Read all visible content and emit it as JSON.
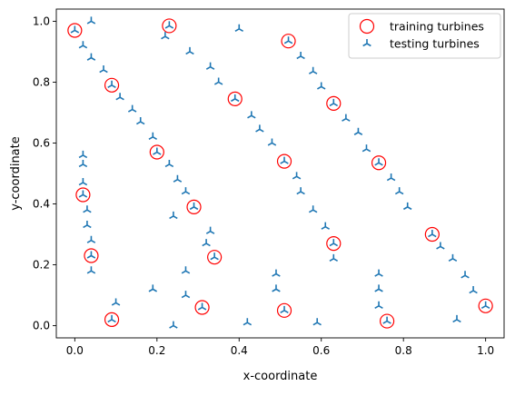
{
  "chart_data": {
    "type": "scatter",
    "title": "",
    "xlabel": "x-coordinate",
    "ylabel": "y-coordinate",
    "xlim": [
      -0.045,
      1.045
    ],
    "ylim": [
      -0.04,
      1.04
    ],
    "xticks": [
      0.0,
      0.2,
      0.4,
      0.6,
      0.8,
      1.0
    ],
    "yticks": [
      0.0,
      0.2,
      0.4,
      0.6,
      0.8,
      1.0
    ],
    "xtick_labels": [
      "0.0",
      "0.2",
      "0.4",
      "0.6",
      "0.8",
      "1.0"
    ],
    "ytick_labels": [
      "0.0",
      "0.2",
      "0.4",
      "0.6",
      "0.8",
      "1.0"
    ],
    "grid": false,
    "legend": {
      "position": "top-right",
      "entries": [
        "training turbines",
        "testing turbines"
      ]
    },
    "series": [
      {
        "name": "training turbines",
        "marker": "open-circle",
        "color": "#ff0000",
        "points": [
          [
            0.0,
            0.97
          ],
          [
            0.23,
            0.985
          ],
          [
            0.52,
            0.935
          ],
          [
            0.09,
            0.79
          ],
          [
            0.39,
            0.745
          ],
          [
            0.63,
            0.73
          ],
          [
            0.2,
            0.57
          ],
          [
            0.51,
            0.54
          ],
          [
            0.74,
            0.535
          ],
          [
            0.02,
            0.43
          ],
          [
            0.29,
            0.39
          ],
          [
            0.04,
            0.23
          ],
          [
            0.34,
            0.225
          ],
          [
            0.63,
            0.27
          ],
          [
            0.87,
            0.3
          ],
          [
            0.09,
            0.02
          ],
          [
            0.31,
            0.06
          ],
          [
            0.51,
            0.05
          ],
          [
            0.76,
            0.015
          ],
          [
            1.0,
            0.065
          ]
        ]
      },
      {
        "name": "testing turbines",
        "marker": "tri-up",
        "color": "#1f77b4",
        "points": [
          [
            0.0,
            0.97
          ],
          [
            0.04,
            1.0
          ],
          [
            0.02,
            0.92
          ],
          [
            0.04,
            0.88
          ],
          [
            0.07,
            0.84
          ],
          [
            0.09,
            0.79
          ],
          [
            0.11,
            0.75
          ],
          [
            0.14,
            0.71
          ],
          [
            0.16,
            0.67
          ],
          [
            0.19,
            0.62
          ],
          [
            0.2,
            0.57
          ],
          [
            0.23,
            0.53
          ],
          [
            0.25,
            0.48
          ],
          [
            0.27,
            0.44
          ],
          [
            0.29,
            0.39
          ],
          [
            0.24,
            0.36
          ],
          [
            0.23,
            0.985
          ],
          [
            0.22,
            0.95
          ],
          [
            0.28,
            0.9
          ],
          [
            0.4,
            0.975
          ],
          [
            0.33,
            0.85
          ],
          [
            0.35,
            0.8
          ],
          [
            0.39,
            0.745
          ],
          [
            0.43,
            0.69
          ],
          [
            0.45,
            0.645
          ],
          [
            0.48,
            0.6
          ],
          [
            0.51,
            0.54
          ],
          [
            0.54,
            0.49
          ],
          [
            0.55,
            0.44
          ],
          [
            0.58,
            0.38
          ],
          [
            0.61,
            0.325
          ],
          [
            0.63,
            0.27
          ],
          [
            0.63,
            0.22
          ],
          [
            0.52,
            0.935
          ],
          [
            0.55,
            0.885
          ],
          [
            0.58,
            0.835
          ],
          [
            0.6,
            0.785
          ],
          [
            0.63,
            0.73
          ],
          [
            0.66,
            0.68
          ],
          [
            0.69,
            0.635
          ],
          [
            0.71,
            0.58
          ],
          [
            0.74,
            0.535
          ],
          [
            0.77,
            0.485
          ],
          [
            0.79,
            0.44
          ],
          [
            0.81,
            0.39
          ],
          [
            0.02,
            0.56
          ],
          [
            0.02,
            0.53
          ],
          [
            0.02,
            0.47
          ],
          [
            0.02,
            0.43
          ],
          [
            0.03,
            0.38
          ],
          [
            0.03,
            0.33
          ],
          [
            0.04,
            0.28
          ],
          [
            0.04,
            0.23
          ],
          [
            0.04,
            0.18
          ],
          [
            0.33,
            0.31
          ],
          [
            0.32,
            0.27
          ],
          [
            0.34,
            0.225
          ],
          [
            0.27,
            0.18
          ],
          [
            0.19,
            0.12
          ],
          [
            0.27,
            0.1
          ],
          [
            0.31,
            0.06
          ],
          [
            0.24,
            0.0
          ],
          [
            0.1,
            0.075
          ],
          [
            0.09,
            0.02
          ],
          [
            0.49,
            0.17
          ],
          [
            0.49,
            0.12
          ],
          [
            0.51,
            0.05
          ],
          [
            0.42,
            0.01
          ],
          [
            0.59,
            0.01
          ],
          [
            0.74,
            0.17
          ],
          [
            0.74,
            0.12
          ],
          [
            0.74,
            0.065
          ],
          [
            0.76,
            0.015
          ],
          [
            0.87,
            0.3
          ],
          [
            0.89,
            0.26
          ],
          [
            0.92,
            0.22
          ],
          [
            0.95,
            0.165
          ],
          [
            0.97,
            0.115
          ],
          [
            1.0,
            0.065
          ],
          [
            0.93,
            0.02
          ]
        ]
      }
    ]
  }
}
